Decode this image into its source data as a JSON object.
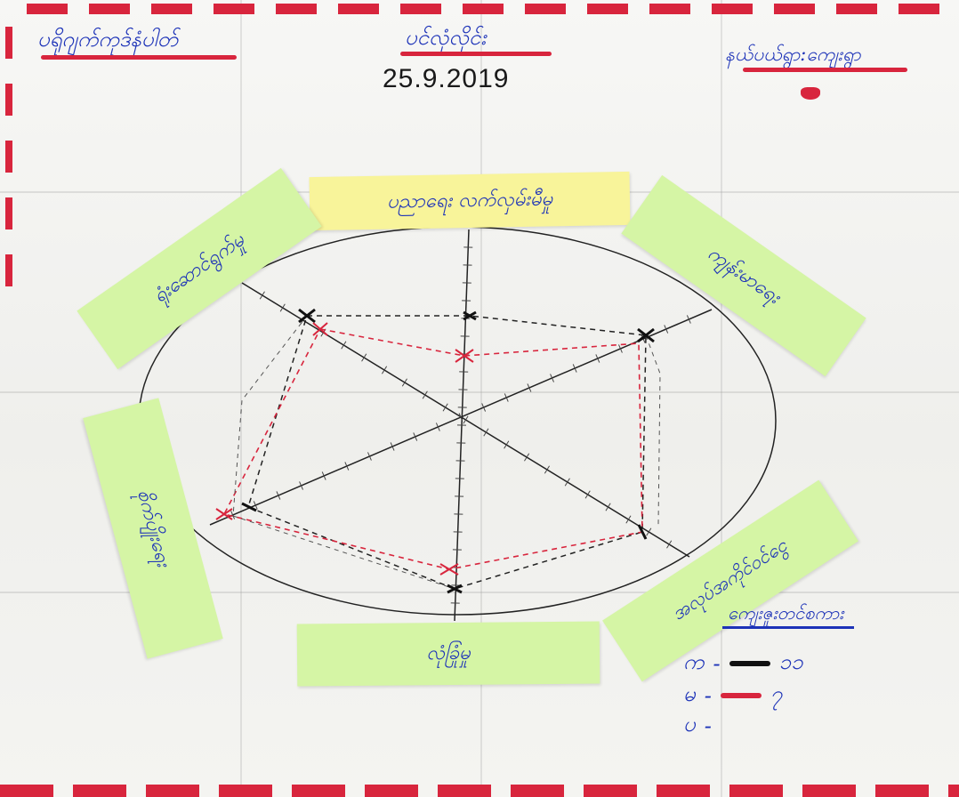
{
  "header": {
    "left_label": "ပရိုဂျက်ကုဒ်နံပါတ်",
    "center_label": "ပင်လုံလိုင်း",
    "date": "25.9.2019",
    "right_label": "နယ်ပယ်ရွာ:ကျေးရွာ"
  },
  "axis_labels": {
    "top": "ပညာရေး လက်လှမ်းမီမှု",
    "top_right": "ကျန်းမာရေး",
    "bottom_right": "အလုပ်အကိုင်ဝင်ငွေ",
    "bottom": "လုံခြုံမှု",
    "left": "စိုက်ပျိုးရေး",
    "top_left": "ရုံးဆောင်ရွက်မှု"
  },
  "legend": {
    "title": "ကျေးဇူးတင်စကား",
    "rows": [
      {
        "symbol": "က",
        "color": "#111111",
        "value": "၁၁"
      },
      {
        "symbol": "မ",
        "color": "#d8253d",
        "value": "၇"
      },
      {
        "symbol": "ပ",
        "color": "",
        "value": ""
      }
    ]
  },
  "colors": {
    "accent_red": "#d8253d",
    "ink_blue": "#1d33b8",
    "sticky_green": "#d5f5a5",
    "sticky_yellow": "#f8f49a"
  }
}
